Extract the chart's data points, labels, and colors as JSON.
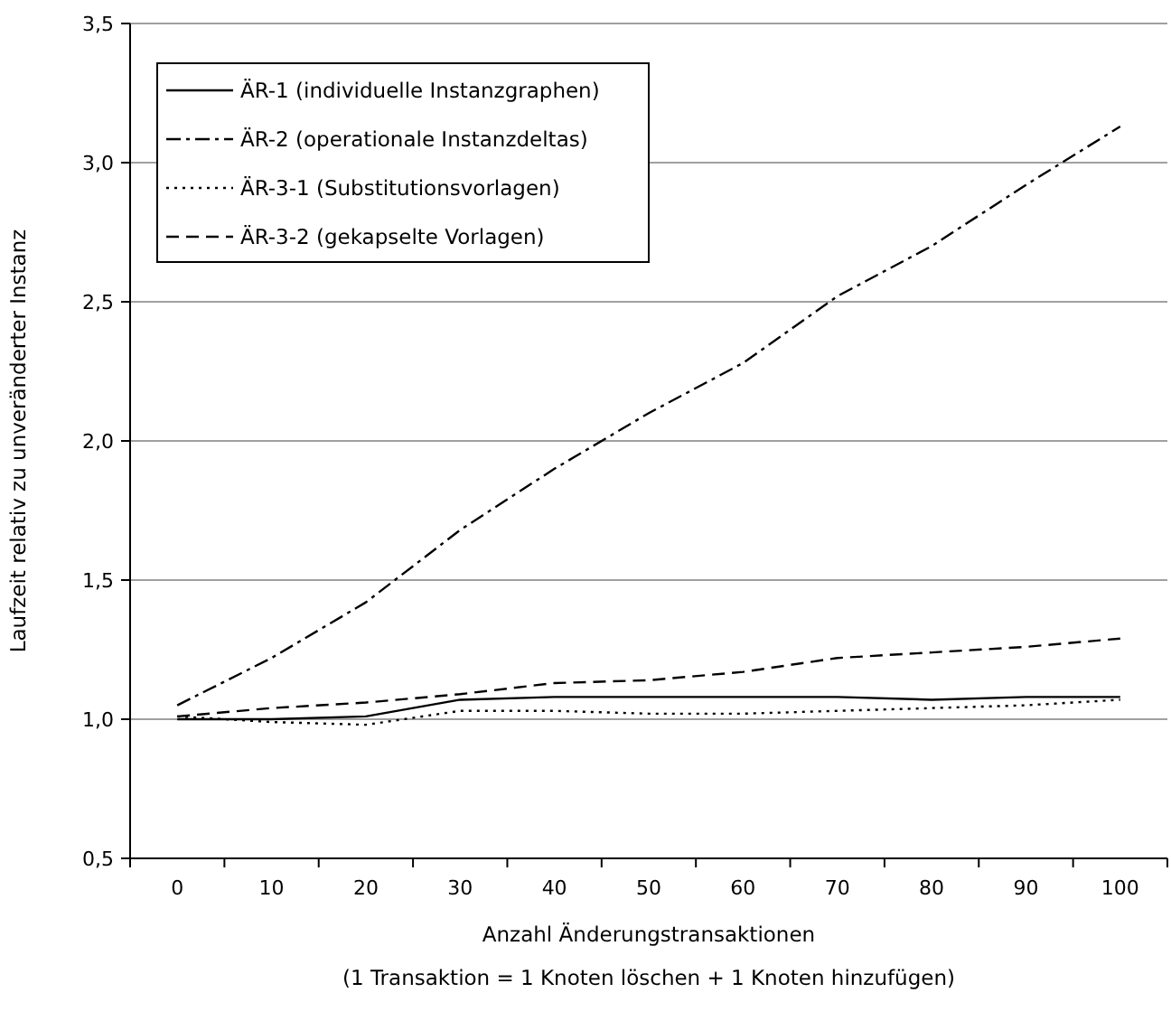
{
  "chart_data": {
    "type": "line",
    "xlabel": "Anzahl Änderungstransaktionen",
    "ylabel": "Laufzeit relativ zu unveränderter Instanz",
    "annotations": [
      "(1 Transaktion = 1 Knoten löschen + 1 Knoten hinzufügen)"
    ],
    "categories": [
      "0",
      "10",
      "20",
      "30",
      "40",
      "50",
      "60",
      "70",
      "80",
      "90",
      "100"
    ],
    "series": [
      {
        "name": "ÄR-1 (individuelle Instanzgraphen)",
        "color": "#000000",
        "line_style": "solid",
        "values": [
          1.0,
          1.0,
          1.01,
          1.07,
          1.08,
          1.08,
          1.08,
          1.08,
          1.07,
          1.08,
          1.08
        ]
      },
      {
        "name": "ÄR-2 (operationale Instanzdeltas)",
        "color": "#000000",
        "line_style": "dashdot",
        "values": [
          1.05,
          1.22,
          1.42,
          1.68,
          1.9,
          2.1,
          2.28,
          2.52,
          2.7,
          2.92,
          3.13
        ]
      },
      {
        "name": "ÄR-3-1 (Substitutionsvorlagen)",
        "color": "#000000",
        "line_style": "dotted",
        "values": [
          1.01,
          0.99,
          0.98,
          1.03,
          1.03,
          1.02,
          1.02,
          1.03,
          1.04,
          1.05,
          1.07
        ]
      },
      {
        "name": "ÄR-3-2 (gekapselte Vorlagen)",
        "color": "#000000",
        "line_style": "dashed",
        "values": [
          1.01,
          1.04,
          1.06,
          1.09,
          1.13,
          1.14,
          1.17,
          1.22,
          1.24,
          1.26,
          1.29
        ]
      }
    ],
    "ylim": [
      0.5,
      3.5
    ],
    "yticks": [
      {
        "value": 0.5,
        "label": "0,5"
      },
      {
        "value": 1.0,
        "label": "1,0"
      },
      {
        "value": 1.5,
        "label": "1,5"
      },
      {
        "value": 2.0,
        "label": "2,0"
      },
      {
        "value": 2.5,
        "label": "2,5"
      },
      {
        "value": 3.0,
        "label": "3,0"
      },
      {
        "value": 3.5,
        "label": "3,5"
      }
    ],
    "grid": "y",
    "legend": "top left",
    "marker": "none"
  }
}
